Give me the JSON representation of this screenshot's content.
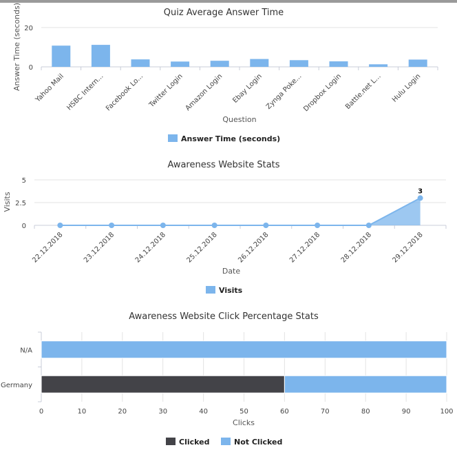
{
  "colors": {
    "blue": "#7cb5ec",
    "dark": "#434348",
    "grid": "#e3e3e3",
    "axis": "#c8ccd8"
  },
  "chart_data": [
    {
      "type": "bar",
      "title": "Quiz Average Answer Time",
      "xlabel": "Question",
      "ylabel": "Answer Time (seconds)",
      "ylim": [
        0,
        20
      ],
      "yticks": [
        "0",
        "20"
      ],
      "categories": [
        "Yahoo Mail",
        "HSBC Intern...",
        "Facebook Lo...",
        "Twitter Login",
        "Amazon Login",
        "Ebay Login",
        "Zynga Poke...",
        "Dropbox Login",
        "Battle.net L...",
        "Hulu Login"
      ],
      "series": [
        {
          "name": "Answer Time (seconds)",
          "values": [
            10.8,
            11.2,
            3.8,
            2.7,
            3.1,
            4.0,
            3.4,
            2.8,
            1.3,
            3.7
          ]
        }
      ],
      "legend": "bottom-center",
      "grid": true
    },
    {
      "type": "area",
      "title": "Awareness Website Stats",
      "xlabel": "Date",
      "ylabel": "Visits",
      "ylim": [
        0,
        5
      ],
      "yticks": [
        "0",
        "2.5",
        "5"
      ],
      "categories": [
        "22.12.2018",
        "23.12.2018",
        "24.12.2018",
        "25.12.2018",
        "26.12.2018",
        "27.12.2018",
        "28.12.2018",
        "29.12.2018"
      ],
      "series": [
        {
          "name": "Visits",
          "values": [
            0,
            0,
            0,
            0,
            0,
            0,
            0,
            3
          ]
        }
      ],
      "data_labels": [
        "",
        "",
        "",
        "",
        "",
        "",
        "",
        "3"
      ],
      "legend": "bottom-center",
      "grid": true
    },
    {
      "type": "bar",
      "orientation": "horizontal",
      "stacked": true,
      "title": "Awareness Website Click Percentage Stats",
      "xlabel": "Clicks",
      "ylabel": "",
      "xlim": [
        0,
        100
      ],
      "xticks": [
        "0",
        "10",
        "20",
        "30",
        "40",
        "50",
        "60",
        "70",
        "80",
        "90",
        "100"
      ],
      "categories": [
        "N/A",
        "Germany"
      ],
      "series": [
        {
          "name": "Clicked",
          "values": [
            0,
            60
          ]
        },
        {
          "name": "Not Clicked",
          "values": [
            100,
            40
          ]
        }
      ],
      "legend": "bottom-center",
      "grid": true
    }
  ]
}
